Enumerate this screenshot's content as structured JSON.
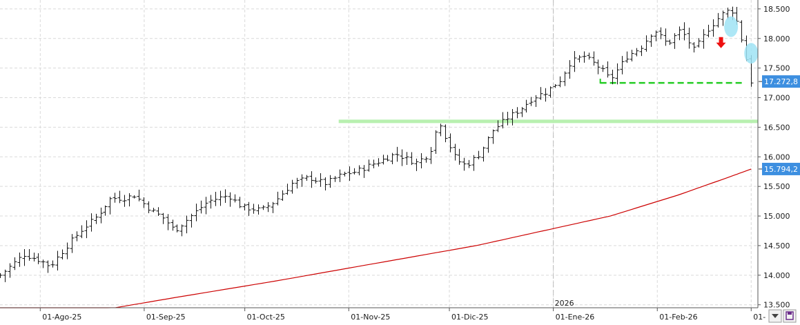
{
  "chart_data": {
    "type": "ohlc",
    "title": "",
    "xlabel": "",
    "ylabel": "",
    "ylim": [
      13450,
      18650
    ],
    "y_ticks": [
      "13.500",
      "14.000",
      "14.500",
      "15.000",
      "15.500",
      "16.000",
      "16.500",
      "17.000",
      "17.500",
      "18.000",
      "18.500"
    ],
    "y_tick_values": [
      13500,
      14000,
      14500,
      15000,
      15500,
      16000,
      16500,
      17000,
      17500,
      18000,
      18500
    ],
    "x_ticks": [
      "01-Ago-25",
      "01-Sep-25",
      "01-Oct-25",
      "01-Nov-25",
      "01-Dic-25",
      "01-Ene-26",
      "01-Feb-26",
      "01-"
    ],
    "x_tick_days": [
      0,
      31,
      61,
      92,
      122,
      153,
      184,
      212
    ],
    "x_range_days": [
      -12,
      214
    ],
    "year_marker": {
      "label": "2026",
      "day": 153
    },
    "grid": true,
    "price_tags": [
      {
        "label": "17.272,8",
        "value": 17272.8,
        "color": "#3d8fe0"
      },
      {
        "label": "15.794,2",
        "value": 15794.2,
        "color": "#3d8fe0"
      }
    ],
    "moving_average": {
      "color": "#cc0000",
      "points": [
        [
          -12,
          13250
        ],
        [
          15,
          13380
        ],
        [
          40,
          13620
        ],
        [
          70,
          13900
        ],
        [
          100,
          14200
        ],
        [
          130,
          14500
        ],
        [
          150,
          14750
        ],
        [
          170,
          15000
        ],
        [
          190,
          15350
        ],
        [
          205,
          15650
        ],
        [
          212,
          15794
        ]
      ]
    },
    "support_levels": [
      {
        "value": 16600,
        "from_day": 89,
        "to_day": 214,
        "color": "#b8f0b0",
        "style": "solid"
      },
      {
        "value": 17250,
        "from_day": 167,
        "to_day": 210,
        "color": "#22cc22",
        "style": "dashed"
      }
    ],
    "highlight_markers": [
      {
        "day": 206,
        "value": 18200,
        "color": "#9fe3f5"
      },
      {
        "day": 212,
        "value": 17750,
        "color": "#9fe3f5"
      }
    ],
    "down_arrow": {
      "day": 203,
      "value": 17930,
      "color": "#ee1111"
    },
    "anchors": [
      [
        -12,
        14000
      ],
      [
        -5,
        14350
      ],
      [
        0,
        14250
      ],
      [
        3,
        14150
      ],
      [
        8,
        14500
      ],
      [
        12,
        14750
      ],
      [
        17,
        15000
      ],
      [
        21,
        15300
      ],
      [
        25,
        15300
      ],
      [
        28,
        15350
      ],
      [
        33,
        15100
      ],
      [
        37,
        14950
      ],
      [
        40,
        14750
      ],
      [
        45,
        15000
      ],
      [
        50,
        15250
      ],
      [
        56,
        15350
      ],
      [
        60,
        15150
      ],
      [
        66,
        15100
      ],
      [
        70,
        15250
      ],
      [
        75,
        15550
      ],
      [
        80,
        15650
      ],
      [
        85,
        15550
      ],
      [
        90,
        15700
      ],
      [
        94,
        15750
      ],
      [
        100,
        15900
      ],
      [
        106,
        16050
      ],
      [
        112,
        15900
      ],
      [
        116,
        16050
      ],
      [
        118,
        16450
      ],
      [
        119,
        16600
      ],
      [
        121,
        16300
      ],
      [
        124,
        15950
      ],
      [
        127,
        15850
      ],
      [
        131,
        16050
      ],
      [
        135,
        16450
      ],
      [
        139,
        16650
      ],
      [
        143,
        16800
      ],
      [
        147,
        17000
      ],
      [
        151,
        17100
      ],
      [
        155,
        17300
      ],
      [
        158,
        17600
      ],
      [
        162,
        17700
      ],
      [
        167,
        17500
      ],
      [
        170,
        17300
      ],
      [
        175,
        17700
      ],
      [
        179,
        17850
      ],
      [
        183,
        18150
      ],
      [
        187,
        17900
      ],
      [
        191,
        18150
      ],
      [
        195,
        17800
      ],
      [
        199,
        18150
      ],
      [
        203,
        18400
      ],
      [
        206,
        18500
      ],
      [
        208,
        18250
      ],
      [
        210,
        17800
      ],
      [
        212,
        17272.8
      ]
    ]
  }
}
